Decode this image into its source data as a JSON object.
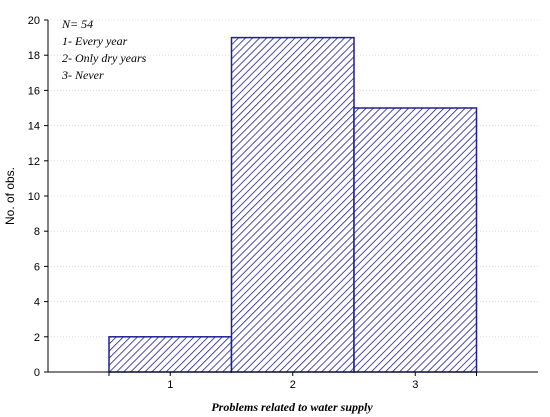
{
  "chart_data": {
    "type": "bar",
    "categories": [
      "1",
      "2",
      "3"
    ],
    "values": [
      2,
      19,
      15
    ],
    "title": "",
    "xlabel": "Problems related to water supply",
    "ylabel": "No. of obs.",
    "ylim": [
      0,
      20
    ],
    "yticks": [
      "0",
      "2",
      "4",
      "6",
      "8",
      "10",
      "12",
      "14",
      "16",
      "18",
      "20"
    ],
    "grid": true,
    "legend_notes": [
      "N= 54",
      "1- Every year",
      "2- Only dry years",
      "3- Never"
    ],
    "bar_color": "#1f1f8f",
    "bar_pattern": "diagonal-hatch"
  }
}
